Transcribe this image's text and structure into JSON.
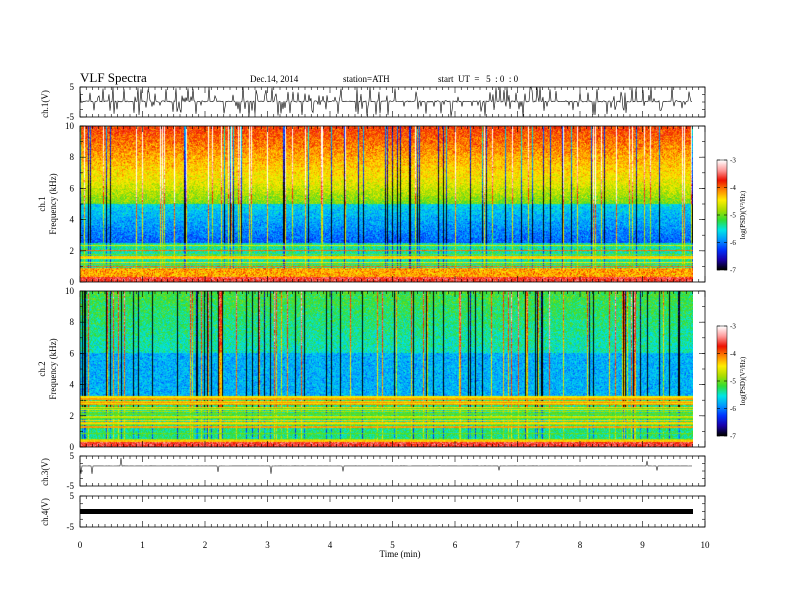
{
  "header": {
    "title": "VLF  Spectra",
    "date": "Dec.14, 2014",
    "station": "station=ATH",
    "start": "start  UT  =   5  : 0  : 0"
  },
  "chart_data": {
    "type": "heatmap",
    "xlabel": "Time  (min)",
    "xlim": [
      0,
      10
    ],
    "x_ticks": [
      "0",
      "1",
      "2",
      "3",
      "4",
      "5",
      "6",
      "7",
      "8",
      "9",
      "10"
    ],
    "data_end_min": 9.8,
    "panels": [
      {
        "id": "ch1-waveform",
        "type": "line",
        "ylabel": "ch.1(V)",
        "ylim": [
          -5,
          5
        ],
        "y_ticks": [
          "5",
          "-5"
        ],
        "baseline": 0.2,
        "amplitude": "noisy with frequent spikes"
      },
      {
        "id": "ch1-spectrogram",
        "type": "heatmap",
        "ylabel_top": "ch.1",
        "ylabel": "Frequency  (kHz)",
        "ylim": [
          0,
          10
        ],
        "y_ticks": [
          "0",
          "2",
          "4",
          "6",
          "8",
          "10"
        ],
        "colorbar": {
          "label": "log(PSD)(V²/Hz)",
          "range": [
            -7,
            -3
          ],
          "ticks": [
            "-3",
            "-4",
            "-5",
            "-6",
            "-7"
          ]
        }
      },
      {
        "id": "ch2-spectrogram",
        "type": "heatmap",
        "ylabel_top": "ch.2",
        "ylabel": "Frequency  (kHz)",
        "ylim": [
          0,
          10
        ],
        "y_ticks": [
          "0",
          "2",
          "4",
          "6",
          "8",
          "10"
        ],
        "colorbar": {
          "label": "log(PSD)(V²/Hz)",
          "range": [
            -7,
            -3
          ],
          "ticks": [
            "-3",
            "-4",
            "-5",
            "-6",
            "-7"
          ]
        }
      },
      {
        "id": "ch3-waveform",
        "type": "line",
        "ylabel": "ch.3(V)",
        "ylim": [
          -5,
          5
        ],
        "y_ticks": [
          "5",
          "-5"
        ],
        "baseline": 0.2,
        "amplitude": "quiet"
      },
      {
        "id": "ch4-waveform",
        "type": "line",
        "ylabel": "ch.4(V)",
        "ylim": [
          -5,
          5
        ],
        "y_ticks": [
          "5",
          "-5"
        ],
        "baseline": 0,
        "amplitude": "thick constant band"
      }
    ],
    "colormap": [
      "#000000",
      "#1a00aa",
      "#0033ff",
      "#0099ff",
      "#00e6e6",
      "#33dd33",
      "#aadd00",
      "#ffee00",
      "#ff8800",
      "#ee1100",
      "#ff9999",
      "#ffffff"
    ]
  }
}
